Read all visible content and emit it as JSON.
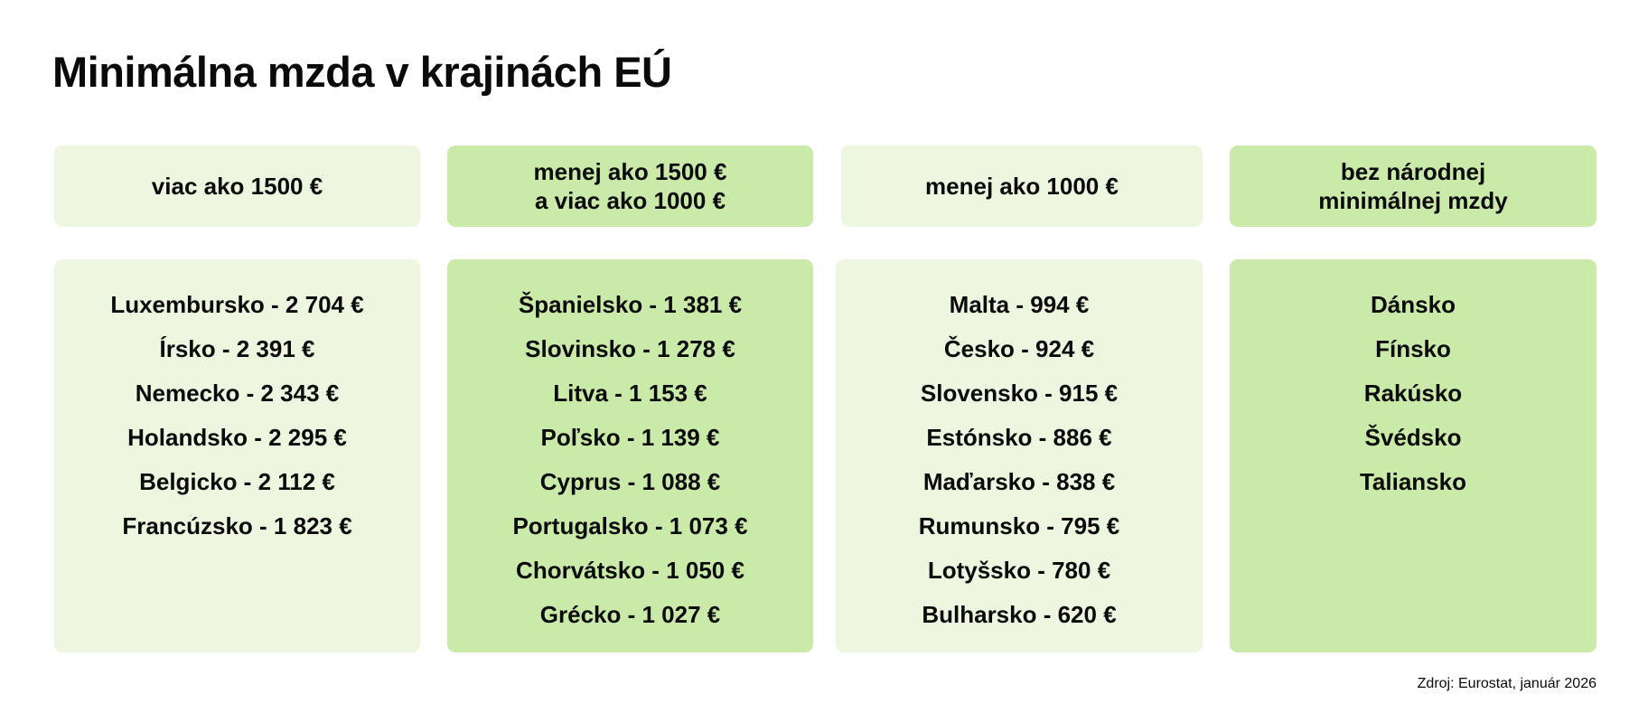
{
  "title": "Minimálna mzda v krajinách EÚ",
  "columns": [
    {
      "header": [
        "viac ako 1500 €"
      ],
      "items": [
        "Luxembursko - 2 704 €",
        "Írsko - 2 391 €",
        "Nemecko - 2 343 €",
        "Holandsko - 2 295 €",
        "Belgicko - 2 112 €",
        "Francúzsko - 1 823 €"
      ]
    },
    {
      "header": [
        "menej ako 1500 €",
        "a viac ako 1000 €"
      ],
      "items": [
        "Španielsko - 1 381 €",
        "Slovinsko - 1 278 €",
        "Litva - 1 153 €",
        "Poľsko - 1 139 €",
        "Cyprus - 1 088 €",
        "Portugalsko - 1 073 €",
        "Chorvátsko - 1 050 €",
        "Grécko - 1 027 €"
      ]
    },
    {
      "header": [
        "menej ako 1000 €"
      ],
      "items": [
        "Malta - 994 €",
        "Česko - 924 €",
        "Slovensko - 915 €",
        "Estónsko - 886 €",
        "Maďarsko - 838 €",
        "Rumunsko - 795 €",
        "Lotyšsko - 780 €",
        "Bulharsko - 620 €"
      ]
    },
    {
      "header": [
        "bez národnej",
        "minimálnej mzdy"
      ],
      "items": [
        "Dánsko",
        "Fínsko",
        "Rakúsko",
        "Švédsko",
        "Taliansko"
      ]
    }
  ],
  "source": "Zdroj: Eurostat, január 2026",
  "colors": {
    "light": "#edf7df",
    "green": "#c9eaa8"
  }
}
